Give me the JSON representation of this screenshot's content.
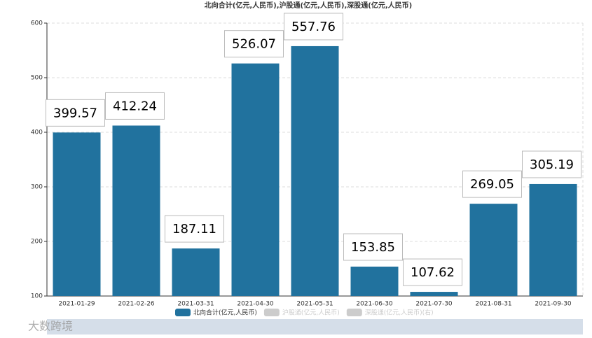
{
  "chart_data": {
    "type": "bar",
    "title": "北向合计(亿元,人民币),沪股通(亿元,人民币),深股通(亿元,人民币)",
    "categories": [
      "2021-01-29",
      "2021-02-26",
      "2021-03-31",
      "2021-04-30",
      "2021-05-31",
      "2021-06-30",
      "2021-07-30",
      "2021-08-31",
      "2021-09-30"
    ],
    "series": [
      {
        "name": "北向合计(亿元,人民币)",
        "color": "#21729e",
        "values": [
          399.57,
          412.24,
          187.11,
          526.07,
          557.76,
          153.85,
          107.62,
          269.05,
          305.19
        ]
      },
      {
        "name": "沪股通(亿元,人民币)",
        "color": "#cccccc",
        "values": [
          null,
          null,
          null,
          null,
          null,
          null,
          null,
          null,
          null
        ]
      },
      {
        "name": "深股通(亿元,人民币)(右)",
        "color": "#cccccc",
        "values": [
          null,
          null,
          null,
          null,
          null,
          null,
          null,
          null,
          null
        ]
      }
    ],
    "ylim": [
      100,
      600
    ],
    "yticks": [
      100,
      200,
      300,
      400,
      500,
      600
    ],
    "grid": true,
    "watermark": "大数跨境"
  }
}
